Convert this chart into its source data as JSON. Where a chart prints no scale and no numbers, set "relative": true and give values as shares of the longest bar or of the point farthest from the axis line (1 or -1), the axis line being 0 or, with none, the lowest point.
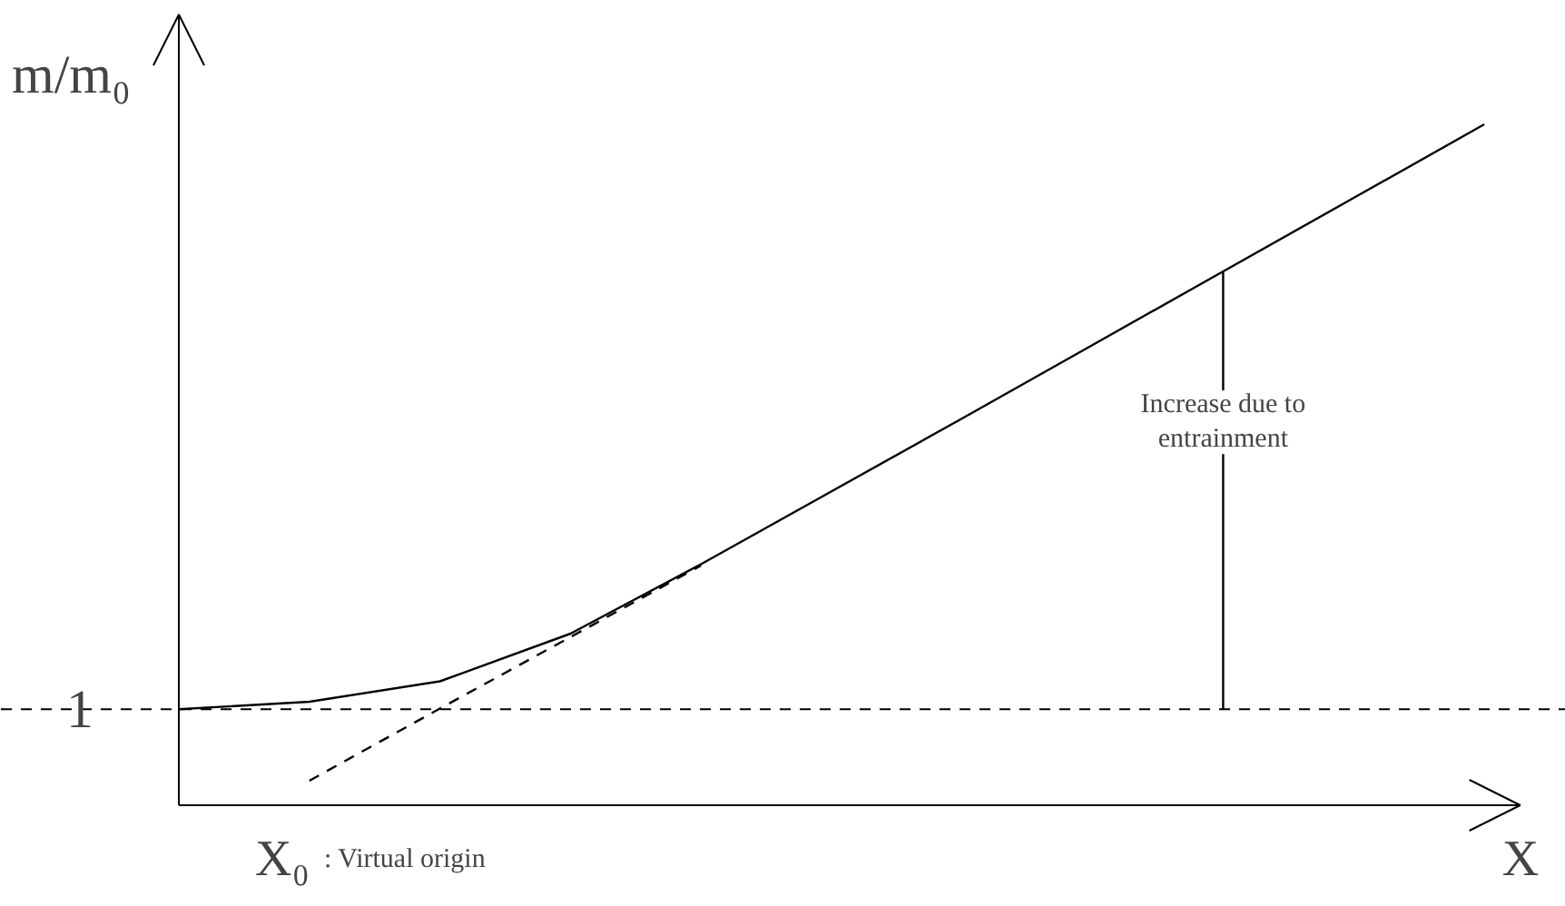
{
  "chart_data": {
    "type": "line",
    "relative": true,
    "ylabel": "m/m₀",
    "xlabel": "X",
    "categories": [
      null,
      null,
      null,
      null,
      null,
      null,
      null,
      null,
      null,
      null,
      null
    ],
    "series": [
      {
        "color": "#000000",
        "line_style": "solid",
        "values": [
          0.141,
          0.152,
          0.182,
          0.252,
          0.354,
          0.461,
          0.568,
          0.676,
          0.784,
          0.892,
          1.0
        ]
      },
      {
        "color": "#000000",
        "line_style": "dashed",
        "values": [
          null,
          0.036,
          0.142,
          0.247,
          0.352,
          null,
          null,
          null,
          null,
          null,
          null
        ]
      }
    ],
    "ref_lines": [
      {
        "axis": "y",
        "value": 0.141,
        "line_style": "dashed",
        "color": "#000000"
      }
    ],
    "annotations": [
      {
        "text": "1",
        "y": 0.141
      },
      "Increase due to entrainment",
      "X₀",
      ": Virtual origin"
    ],
    "grid": false,
    "marker": "none"
  }
}
